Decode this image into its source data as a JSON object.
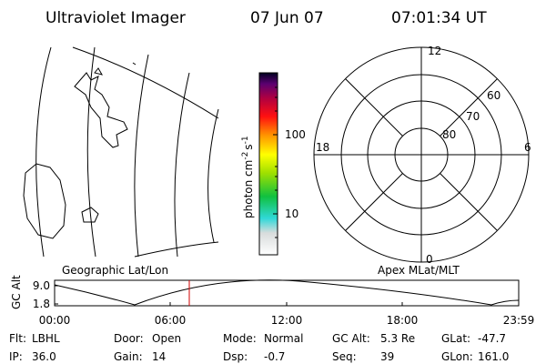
{
  "header": {
    "instrument": "Ultraviolet Imager",
    "date": "07 Jun 07",
    "time": "07:01:34 UT"
  },
  "map": {
    "label": "Geographic Lat/Lon"
  },
  "colorbar": {
    "unit": "photon cm",
    "unit_exp1": "-2",
    "unit_s": "s",
    "unit_exp2": "-1",
    "ticks": [
      "100",
      "10"
    ]
  },
  "polar": {
    "label": "Apex MLat/MLT",
    "mlt": [
      "12",
      "6",
      "0",
      "18"
    ],
    "mlat": [
      "80",
      "70",
      "60"
    ]
  },
  "altitude": {
    "axis_title": "GC Alt",
    "y_labels": [
      "9.0",
      "1.8"
    ],
    "x_labels": [
      "00:00",
      "06:00",
      "12:00",
      "18:00",
      "23:59"
    ]
  },
  "info": [
    [
      {
        "label": "Flt:",
        "value": "LBHL"
      },
      {
        "label": "Door:",
        "value": "Open"
      },
      {
        "label": "Mode:",
        "value": "Normal"
      },
      {
        "label": "GC Alt:",
        "value": "5.3 Re"
      },
      {
        "label": "GLat:",
        "value": "-47.7"
      }
    ],
    [
      {
        "label": "IP:",
        "value": "36.0"
      },
      {
        "label": "Gain:",
        "value": "14"
      },
      {
        "label": "Dsp:",
        "value": "-0.7"
      },
      {
        "label": "Seq:",
        "value": "39"
      },
      {
        "label": "GLon:",
        "value": "161.0"
      }
    ]
  ]
}
